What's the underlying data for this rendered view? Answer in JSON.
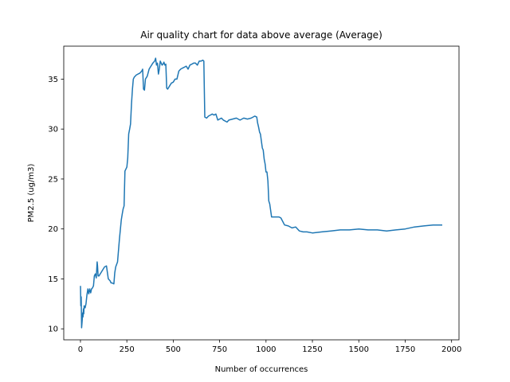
{
  "chart_data": {
    "type": "line",
    "title": "Air quality chart for data above average (Average)",
    "xlabel": "Number of occurrences",
    "ylabel": "PM2.5 (ug/m3)",
    "xlim": [
      -90,
      2040
    ],
    "ylim": [
      8.9,
      38.3
    ],
    "xticks": [
      0,
      250,
      500,
      750,
      1000,
      1250,
      1500,
      1750,
      2000
    ],
    "yticks": [
      10,
      15,
      20,
      25,
      30,
      35
    ],
    "grid": false,
    "line_color": "#1f77b4",
    "series": [
      {
        "x": [
          0,
          2,
          4,
          6,
          8,
          10,
          12,
          14,
          16,
          18,
          20,
          25,
          30,
          35,
          40,
          45,
          50,
          55,
          60,
          65,
          70,
          75,
          80,
          85,
          90,
          92,
          95,
          100,
          110,
          120,
          130,
          140,
          150,
          160,
          165,
          170,
          180,
          185,
          190,
          200,
          210,
          220,
          225,
          230,
          235,
          240,
          245,
          250,
          255,
          260,
          265,
          270,
          275,
          280,
          285,
          290,
          295,
          300,
          310,
          320,
          330,
          335,
          340,
          345,
          350,
          360,
          370,
          380,
          390,
          400,
          405,
          410,
          415,
          420,
          425,
          430,
          435,
          440,
          445,
          450,
          455,
          460,
          465,
          470,
          480,
          490,
          500,
          510,
          520,
          530,
          540,
          550,
          560,
          570,
          580,
          590,
          600,
          610,
          620,
          630,
          640,
          650,
          660,
          665,
          668,
          670,
          680,
          690,
          700,
          710,
          720,
          730,
          740,
          750,
          760,
          770,
          780,
          790,
          800,
          820,
          840,
          860,
          880,
          900,
          920,
          940,
          950,
          955,
          960,
          965,
          970,
          975,
          980,
          985,
          990,
          995,
          1000,
          1005,
          1010,
          1015,
          1020,
          1030,
          1040,
          1050,
          1060,
          1070,
          1080,
          1100,
          1120,
          1140,
          1160,
          1180,
          1200,
          1220,
          1250,
          1300,
          1350,
          1400,
          1450,
          1500,
          1550,
          1600,
          1650,
          1700,
          1750,
          1800,
          1850,
          1900,
          1950
        ],
        "y": [
          14.3,
          12.3,
          13.2,
          10.1,
          10.5,
          11.0,
          11.6,
          11.2,
          12.0,
          11.5,
          12.3,
          12.1,
          12.5,
          13.4,
          14.0,
          13.5,
          14.0,
          13.6,
          14.0,
          14.1,
          14.3,
          15.3,
          15.5,
          15.1,
          16.7,
          16.3,
          15.3,
          15.3,
          15.6,
          15.9,
          16.2,
          16.3,
          15.0,
          14.8,
          14.6,
          14.6,
          14.5,
          15.6,
          16.2,
          16.7,
          19.0,
          20.9,
          21.5,
          22.0,
          22.3,
          25.8,
          26.0,
          26.2,
          27.1,
          29.5,
          30.0,
          30.5,
          32.5,
          34.0,
          35.0,
          35.2,
          35.3,
          35.4,
          35.5,
          35.6,
          35.8,
          36.0,
          34.0,
          33.9,
          35.0,
          35.3,
          36.0,
          36.3,
          36.6,
          36.8,
          37.1,
          36.4,
          36.6,
          35.5,
          36.0,
          36.8,
          36.6,
          36.4,
          36.5,
          36.7,
          36.4,
          36.5,
          34.1,
          34.0,
          34.3,
          34.6,
          34.7,
          35.0,
          35.0,
          35.8,
          36.0,
          36.1,
          36.2,
          36.3,
          36.0,
          36.4,
          36.5,
          36.6,
          36.6,
          36.4,
          36.8,
          36.8,
          36.9,
          36.8,
          33.5,
          31.2,
          31.1,
          31.3,
          31.4,
          31.5,
          31.4,
          31.5,
          30.9,
          31.0,
          31.1,
          30.9,
          30.8,
          30.7,
          30.9,
          31.0,
          31.1,
          30.9,
          31.1,
          31.0,
          31.1,
          31.3,
          31.2,
          30.6,
          30.2,
          29.7,
          29.5,
          28.8,
          28.1,
          27.9,
          27.0,
          26.5,
          25.7,
          25.7,
          24.8,
          22.8,
          22.5,
          21.2,
          21.2,
          21.2,
          21.2,
          21.2,
          21.1,
          20.4,
          20.3,
          20.1,
          20.2,
          19.8,
          19.7,
          19.7,
          19.6,
          19.7,
          19.8,
          19.9,
          19.9,
          20.0,
          19.9,
          19.9,
          19.8,
          19.9,
          20.0,
          20.2,
          20.3,
          20.4,
          20.4
        ]
      }
    ]
  }
}
